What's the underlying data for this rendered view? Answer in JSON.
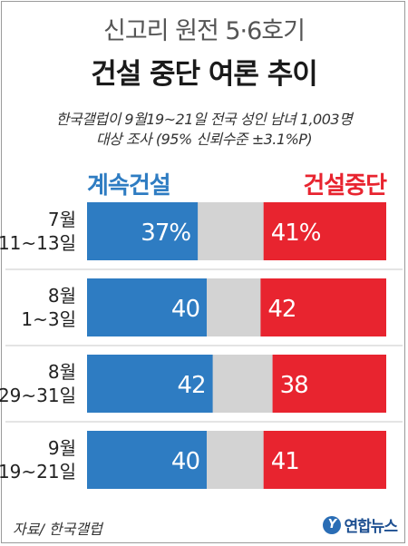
{
  "header": {
    "title": "신고리 원전 5·6호기",
    "subtitle": "건설 중단 여론 추이",
    "note_line1": "한국갤럽이 9월19~21일 전국 성인 남녀 1,003명",
    "note_line2": "대상 조사 (95% 신뢰수준 ±3.1%P)"
  },
  "chart_data": {
    "type": "bar",
    "stacked": true,
    "orientation": "horizontal",
    "categories": [
      [
        "7월",
        "11~13일"
      ],
      [
        "8월",
        "1~3일"
      ],
      [
        "8월",
        "29~31일"
      ],
      [
        "9월",
        "19~21일"
      ]
    ],
    "series": [
      {
        "name": "계속건설",
        "values": [
          37,
          40,
          42,
          40
        ],
        "color": "#2e7cc2"
      },
      {
        "name": "건설중단",
        "values": [
          41,
          42,
          38,
          41
        ],
        "color": "#e8242f"
      }
    ],
    "value_labels": [
      [
        "37%",
        "40",
        "42",
        "40"
      ],
      [
        "41%",
        "42",
        "38",
        "41"
      ]
    ],
    "xlim": [
      0,
      100
    ],
    "remainder_color": "#d3d3d3",
    "legend_position": "top"
  },
  "footer": {
    "source": "자료/ 한국갤럽",
    "logo_mark": "Y",
    "logo_text": "연합뉴스"
  }
}
